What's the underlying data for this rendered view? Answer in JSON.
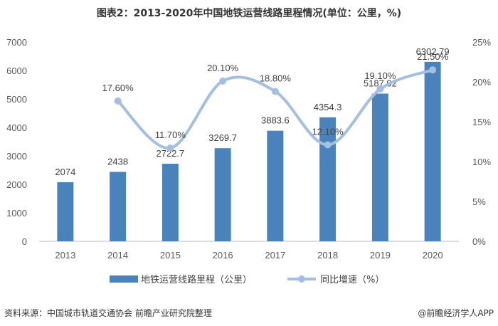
{
  "chart_data": {
    "type": "bar",
    "title": "图表2：2013-2020年中国地铁运营线路里程情况(单位：公里，%)",
    "categories": [
      "2013",
      "2014",
      "2015",
      "2016",
      "2017",
      "2018",
      "2019",
      "2020"
    ],
    "series": [
      {
        "name": "地铁运营线路里程（公里）",
        "type": "bar",
        "axis": "left",
        "values": [
          2074,
          2438,
          2722.7,
          3269.7,
          3883.6,
          4354.3,
          5187.02,
          6302.79
        ]
      },
      {
        "name": "同比增速（%）",
        "type": "line",
        "axis": "right",
        "values": [
          null,
          17.6,
          11.7,
          20.1,
          18.8,
          12.1,
          19.1,
          21.5
        ]
      }
    ],
    "bar_labels": [
      "2074",
      "2438",
      "2722.7",
      "3269.7",
      "3883.6",
      "4354.3",
      "5187.02",
      "6302.79"
    ],
    "line_labels": [
      "",
      "17.60%",
      "11.70%",
      "20.10%",
      "18.80%",
      "12.10%",
      "19.10%",
      "21.50%"
    ],
    "y_left": {
      "min": 0,
      "max": 7000,
      "step": 1000,
      "ticks": [
        "0",
        "1000",
        "2000",
        "3000",
        "4000",
        "5000",
        "6000",
        "7000"
      ]
    },
    "y_right": {
      "min": 0,
      "max": 25,
      "step": 5,
      "ticks": [
        "0%",
        "5%",
        "10%",
        "15%",
        "20%",
        "25%"
      ]
    },
    "grid": false,
    "legend_position": "bottom",
    "colors": {
      "bar": "#4a82bb",
      "line": "#a3bfe1",
      "marker": "#a3bfe1"
    }
  },
  "footer": {
    "source": "资料来源：中国城市轨道交通协会 前瞻产业研究院整理",
    "brand": "@前瞻经济学人APP"
  }
}
